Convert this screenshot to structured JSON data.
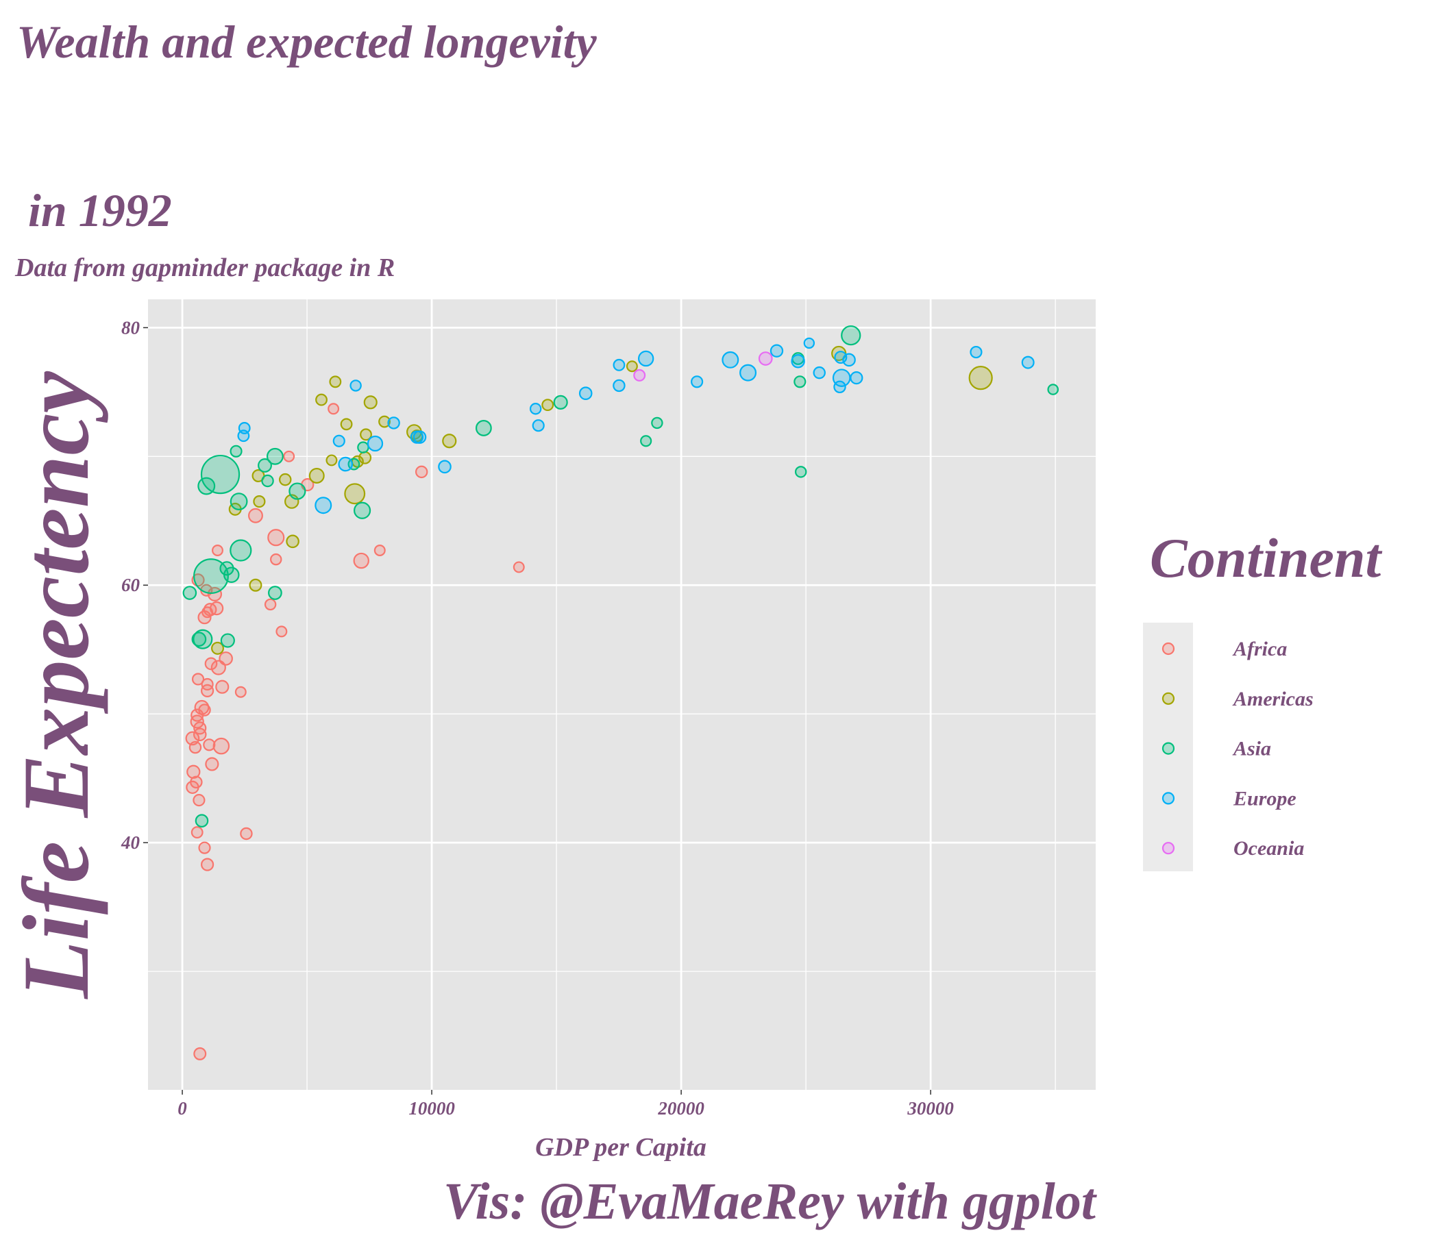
{
  "chart_data": {
    "type": "scatter",
    "title": "Wealth and expected longevity\n\n in 1992",
    "subtitle": "Data from gapminder package in R",
    "x_label": "GDP per Capita",
    "y_label": "Life Expectency",
    "caption": "Vis: @EvaMaeRey with ggplot",
    "legend_title": "Continent",
    "legend": "right",
    "grid": true,
    "xlim": [
      -1375,
      36617
    ],
    "ylim": [
      20.8,
      82.2
    ],
    "xticks": [
      0,
      10000,
      20000,
      30000
    ],
    "yticks": [
      40,
      60,
      80
    ],
    "x_minor_ticks": [
      5000,
      15000,
      25000,
      35000
    ],
    "y_minor_ticks": [
      30,
      50,
      70
    ],
    "series": [
      {
        "name": "Africa",
        "color": "#F8766D",
        "x": [
          706,
          1004,
          892,
          2565,
          595,
          669,
          409,
          558,
          446,
          1190,
          1561,
          1078,
          520,
          706,
          409,
          706,
          595,
          595,
          892,
          781,
          2342,
          1004,
          1599,
          1004,
          632,
          1152,
          1450,
          1747,
          3978,
          892,
          1115,
          1375,
          1004,
          3532,
          1301,
          967,
          632,
          3755,
          7175,
          7918,
          13494,
          1413,
          3755,
          2937,
          5019,
          4275,
          9591,
          6059
        ],
        "values": [
          23.6,
          38.3,
          39.6,
          40.7,
          40.8,
          43.3,
          44.3,
          44.7,
          45.5,
          46.1,
          47.5,
          47.6,
          47.4,
          48.4,
          48.1,
          48.9,
          49.4,
          49.9,
          50.3,
          50.5,
          51.7,
          51.8,
          52.1,
          52.3,
          52.7,
          53.9,
          53.6,
          54.3,
          56.4,
          57.5,
          58.1,
          58.2,
          57.9,
          58.5,
          59.3,
          59.6,
          60.4,
          62.0,
          61.9,
          62.7,
          61.4,
          62.7,
          63.7,
          65.4,
          67.8,
          70.0,
          68.8,
          73.7
        ],
        "sizes": [
          7,
          8,
          4,
          5,
          3,
          4,
          9,
          5,
          14,
          13,
          52,
          4,
          5,
          10,
          17,
          8,
          14,
          8,
          5,
          25,
          1,
          8,
          13,
          4,
          4,
          6,
          28,
          16,
          1,
          13,
          10,
          14,
          1,
          2,
          20,
          4,
          8,
          2,
          40,
          1,
          1,
          1,
          59,
          26,
          8,
          1,
          5,
          1
        ]
      },
      {
        "name": "Americas",
        "color": "#A3A500",
        "x": [
          32007,
          26320,
          6134,
          5576,
          7546,
          14647,
          18030,
          8104,
          6580,
          7361,
          10706,
          9405,
          9294,
          7026,
          7323,
          5985,
          4126,
          3048,
          5390,
          6914,
          4387,
          3086,
          2119,
          4424,
          2937,
          1413
        ],
        "values": [
          76.1,
          78.0,
          75.8,
          74.4,
          74.2,
          74.0,
          77.0,
          72.7,
          72.5,
          71.7,
          71.2,
          71.6,
          71.9,
          69.6,
          69.9,
          69.7,
          68.2,
          68.5,
          68.5,
          67.1,
          66.5,
          66.5,
          65.9,
          63.4,
          60.0,
          55.1
        ],
        "sizes": [
          256,
          28,
          3,
          3,
          13,
          3,
          1,
          3,
          3,
          3,
          20,
          4,
          33,
          4,
          7,
          1,
          5,
          7,
          35,
          155,
          22,
          4,
          7,
          10,
          7,
          7
        ]
      },
      {
        "name": "Asia",
        "color": "#00BF7D",
        "x": [
          1524,
          1152,
          297,
          669,
          818,
          781,
          1821,
          3718,
          2342,
          1970,
          1784,
          967,
          2268,
          2156,
          3309,
          3420,
          3718,
          4610,
          7212,
          7249,
          6877,
          12082,
          15167,
          19033,
          18587,
          24796,
          24758,
          26803,
          34907,
          24684
        ],
        "values": [
          68.6,
          60.7,
          59.4,
          55.8,
          55.8,
          41.7,
          55.7,
          59.4,
          62.7,
          60.8,
          61.3,
          67.7,
          66.5,
          70.4,
          69.3,
          68.1,
          70.0,
          67.3,
          65.8,
          70.7,
          69.4,
          72.2,
          74.2,
          72.6,
          71.2,
          68.8,
          75.8,
          79.4,
          75.2,
          77.6
        ],
        "sizes": [
          1164,
          880,
          16,
          24,
          120,
          10,
          20,
          17,
          184,
          41,
          20,
          70,
          68,
          4,
          18,
          5,
          56,
          60,
          60,
          2,
          3,
          44,
          20,
          2,
          1.4,
          2,
          4,
          124,
          0.5,
          6
        ]
      },
      {
        "name": "Europe",
        "color": "#00B0F6",
        "x": [
          2491,
          2454,
          5651,
          6283,
          6543,
          7732,
          6952,
          8476,
          9405,
          9517,
          10520,
          14164,
          14275,
          16171,
          17509,
          17509,
          18587,
          20632,
          21970,
          22677,
          23829,
          25130,
          24684,
          25539,
          26394,
          26729,
          26431,
          26357,
          27026,
          31822,
          33903
        ],
        "values": [
          72.2,
          71.6,
          66.2,
          71.2,
          69.4,
          71.0,
          75.5,
          72.6,
          71.5,
          71.5,
          69.2,
          73.7,
          72.4,
          74.9,
          75.5,
          77.1,
          77.6,
          75.8,
          77.5,
          76.5,
          78.2,
          78.8,
          77.4,
          76.5,
          77.7,
          77.5,
          76.1,
          75.4,
          76.1,
          78.1,
          77.3
        ],
        "sizes": [
          3,
          3,
          58,
          4,
          23,
          38,
          2,
          5,
          9,
          10,
          10,
          2,
          4,
          10,
          5,
          3,
          39,
          4,
          57,
          58,
          9,
          0.3,
          15,
          5,
          7,
          10,
          80,
          5,
          8,
          4,
          7
        ]
      },
      {
        "name": "Oceania",
        "color": "#E76BF3",
        "x": [
          18327,
          23383
        ],
        "values": [
          76.3,
          77.6
        ],
        "sizes": [
          3.4,
          17
        ]
      }
    ]
  }
}
